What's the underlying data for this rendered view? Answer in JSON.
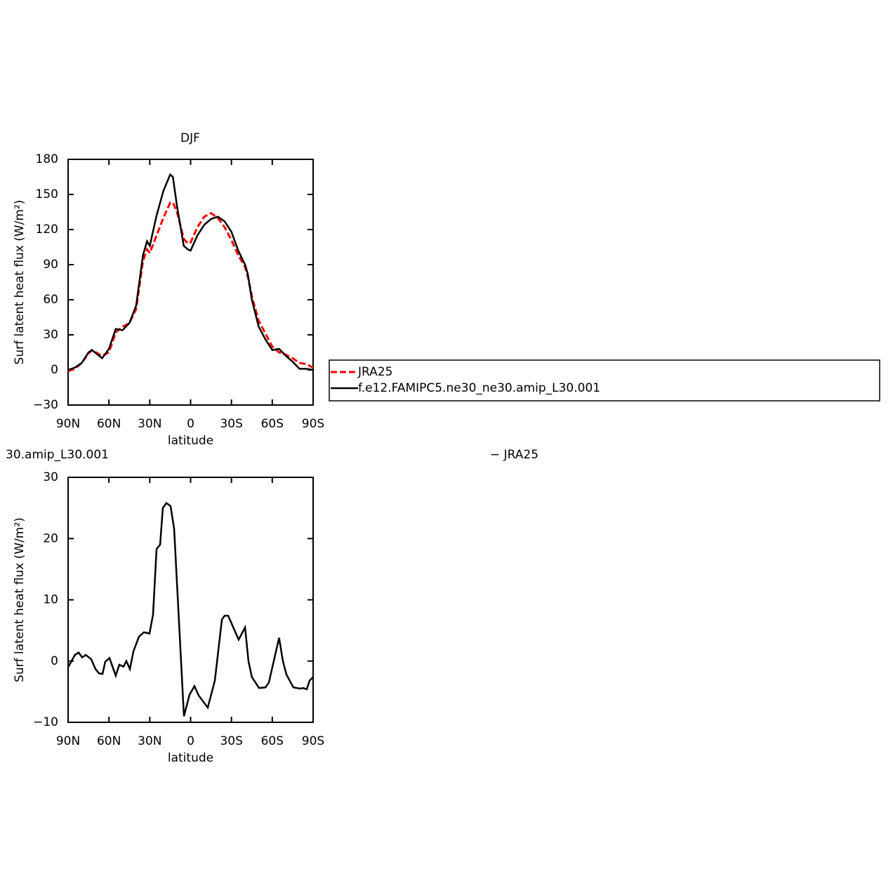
{
  "chart_data": [
    {
      "type": "line",
      "title": "DJF",
      "xlabel": "latitude",
      "ylabel": "Surf latent heat flux (W/m²)",
      "x": [
        90,
        85,
        80,
        75,
        72.5,
        65,
        60,
        55,
        50,
        45,
        40,
        35,
        32,
        30,
        25,
        20,
        15,
        13,
        10,
        5,
        2,
        0,
        -5,
        -10,
        -15,
        -20,
        -25,
        -30,
        -35,
        -40,
        -42,
        -45,
        -50,
        -55,
        -60,
        -65,
        -70,
        -75,
        -80,
        -85,
        -90
      ],
      "series": [
        {
          "name": "JRA25",
          "color": "#ff0000",
          "dash": true,
          "values": [
            -1,
            1,
            6,
            14,
            17,
            12,
            15,
            32,
            37,
            40,
            52,
            93,
            103,
            100,
            115,
            130,
            143,
            143,
            135,
            112,
            108,
            109,
            122,
            131,
            134,
            130,
            122,
            111,
            98,
            88,
            80,
            63,
            42,
            31,
            20,
            15,
            13,
            10,
            6,
            5,
            2
          ]
        },
        {
          "name": "f.e12.FAMIPC5.ne30_ne30.amip_L30.001",
          "color": "#000000",
          "dash": false,
          "values": [
            0,
            2,
            6,
            15,
            17,
            10,
            18,
            35,
            34,
            40,
            55,
            98,
            110,
            106,
            132,
            153,
            167,
            165,
            140,
            106,
            103,
            102,
            115,
            124,
            129,
            131,
            127,
            118,
            102,
            90,
            82,
            60,
            37,
            26,
            17,
            18,
            12,
            7,
            1,
            1,
            0
          ]
        }
      ],
      "xlim": [
        90,
        -90
      ],
      "xticks": [
        {
          "value": 90,
          "label": "90N"
        },
        {
          "value": 60,
          "label": "60N"
        },
        {
          "value": 30,
          "label": "30N"
        },
        0,
        {
          "value": -30,
          "label": "30S"
        },
        {
          "value": -60,
          "label": "60S"
        },
        {
          "value": -90,
          "label": "90S"
        }
      ],
      "ylim": [
        -30,
        180
      ],
      "yticks": [
        {
          "value": -30,
          "label": "−30"
        },
        0,
        30,
        60,
        90,
        120,
        150,
        180
      ],
      "legend": "right"
    },
    {
      "type": "line",
      "title_parts": [
        "30.amip_L30.001",
        "− JRA25"
      ],
      "xlabel": "latitude",
      "ylabel": "Surf latent heat flux (W/m²)",
      "x": [
        90,
        85,
        82.3,
        79.7,
        77,
        73,
        69.9,
        67.3,
        64.7,
        62.7,
        59.6,
        55,
        52.4,
        49.3,
        47.2,
        44.6,
        42,
        37.9,
        34.3,
        30.2,
        27.6,
        25,
        22.4,
        20.4,
        17.8,
        14.7,
        12.1,
        4.9,
        0.8,
        -2.8,
        -5.9,
        -12.6,
        -17.8,
        -23,
        -25,
        -27.6,
        -35.3,
        -40,
        -42.5,
        -45,
        -50.3,
        -55,
        -57.5,
        -65,
        -67.8,
        -70.4,
        -75.5,
        -80.7,
        -82.8,
        -85.3,
        -87.4,
        -90
      ],
      "series": [
        {
          "name": null,
          "color": "#000000",
          "dash": false,
          "values": [
            -1,
            1,
            1.4,
            0.6,
            1,
            0.3,
            -1.3,
            -2,
            -2.1,
            -0.1,
            0.5,
            -2.4,
            -0.6,
            -0.9,
            0,
            -1.3,
            1.6,
            4,
            4.7,
            4.5,
            7.6,
            18.3,
            19,
            25,
            25.8,
            25.3,
            21.6,
            -9,
            -5.5,
            -4.1,
            -5.6,
            -7.6,
            -3.2,
            6.8,
            7.4,
            7.4,
            3.5,
            5.5,
            0,
            -2.6,
            -4.4,
            -4.3,
            -3.5,
            3.8,
            0,
            -2.2,
            -4.3,
            -4.5,
            -4.4,
            -4.6,
            -3.2,
            -2.6
          ]
        }
      ],
      "xlim": [
        90,
        -90
      ],
      "xticks": [
        {
          "value": 90,
          "label": "90N"
        },
        {
          "value": 60,
          "label": "60N"
        },
        {
          "value": 30,
          "label": "30N"
        },
        0,
        {
          "value": -30,
          "label": "30S"
        },
        {
          "value": -60,
          "label": "60S"
        },
        {
          "value": -90,
          "label": "90S"
        }
      ],
      "ylim": [
        -10,
        30
      ],
      "yticks": [
        {
          "value": -10,
          "label": "−10"
        },
        0,
        10,
        20,
        30
      ]
    }
  ]
}
